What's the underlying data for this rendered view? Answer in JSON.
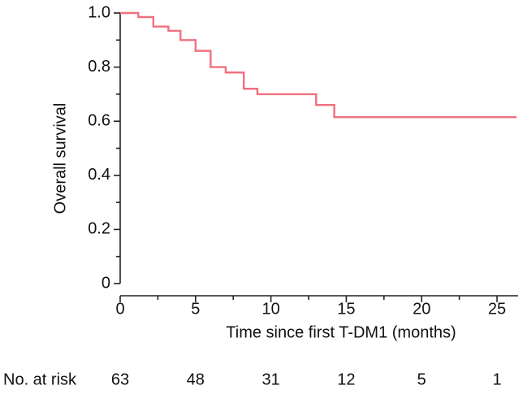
{
  "chart_data": {
    "type": "step",
    "xlabel": "Time since first T-DM1 (months)",
    "ylabel": "Overall survival",
    "x": [
      0,
      1.2,
      2.2,
      3.2,
      4.0,
      5.0,
      6.0,
      7.0,
      8.2,
      9.1,
      13.0,
      14.2,
      26.3
    ],
    "series": [
      {
        "color": "#f0707f",
        "values": [
          1.0,
          0.985,
          0.95,
          0.934,
          0.9,
          0.86,
          0.8,
          0.78,
          0.72,
          0.7,
          0.66,
          0.615,
          0.615
        ]
      }
    ],
    "xlim": [
      0,
      26.4
    ],
    "ylim": [
      0,
      1
    ],
    "xticks": [
      0,
      5,
      10,
      15,
      20,
      25
    ],
    "xticks_minor": [
      2.5,
      7.5,
      12.5,
      17.5,
      22.5
    ],
    "yticks": [
      0,
      0.2,
      0.4,
      0.6,
      0.8,
      {
        "value": 1,
        "label": "1.0"
      }
    ],
    "yticks_minor": [
      0.1,
      0.3,
      0.5,
      0.7,
      0.9
    ],
    "at_risk": {
      "label": "No. at risk",
      "values": [
        63,
        48,
        31,
        12,
        5,
        1
      ]
    }
  }
}
